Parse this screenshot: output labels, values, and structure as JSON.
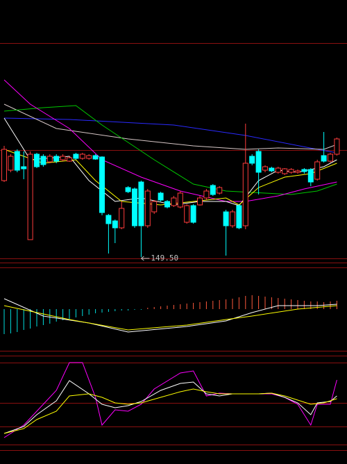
{
  "chart_data": [
    {
      "type": "candlestick",
      "annotations": [
        "149.50"
      ],
      "up_color": "#ff3c3c",
      "down_color": "#00ffff",
      "categories": [
        null,
        null,
        null,
        null,
        null,
        null,
        null,
        null,
        null,
        null,
        null,
        null,
        null,
        null,
        null,
        null,
        null,
        null,
        null,
        null,
        null,
        null,
        null,
        null,
        null,
        null,
        null,
        null,
        null,
        null,
        null,
        null,
        null,
        null,
        null,
        null,
        null,
        null,
        null,
        null,
        null,
        null,
        null,
        null,
        null,
        null,
        null,
        null,
        null,
        null,
        null,
        null
      ],
      "open": [
        155.0,
        155.75,
        157.1,
        156.0,
        150.75,
        156.9,
        156.75,
        156.35,
        156.75,
        156.5,
        156.4,
        156.9,
        156.6,
        156.6,
        156.8,
        156.7,
        152.5,
        152.1,
        151.6,
        154.5,
        154.4,
        154.9,
        151.75,
        152.75,
        154.1,
        153.5,
        153.2,
        153.1,
        152.0,
        153.2,
        153.25,
        153.75,
        154.65,
        154.1,
        152.75,
        151.75,
        153.2,
        151.75,
        156.75,
        157.1,
        155.75,
        155.9,
        155.6,
        155.5,
        155.6,
        155.6,
        155.8,
        155.8,
        155.1,
        156.8,
        156.4,
        156.9
      ],
      "high": [
        157.5,
        156.9,
        157.25,
        157.1,
        157.1,
        157.0,
        156.9,
        156.9,
        156.9,
        156.9,
        156.75,
        157.0,
        157.0,
        156.9,
        156.9,
        156.75,
        152.6,
        152.2,
        153.5,
        154.6,
        154.5,
        155.0,
        154.4,
        153.6,
        154.2,
        153.6,
        153.9,
        154.25,
        153.3,
        153.3,
        153.9,
        154.4,
        154.75,
        154.6,
        152.9,
        152.9,
        153.3,
        159.1,
        156.9,
        157.25,
        156.1,
        156.0,
        156.0,
        155.9,
        155.9,
        155.8,
        155.9,
        155.9,
        156.5,
        158.5,
        157.0,
        158.1
      ],
      "low": [
        154.9,
        155.6,
        155.6,
        155.1,
        150.75,
        155.9,
        156.0,
        156.25,
        156.25,
        156.4,
        156.35,
        156.5,
        156.5,
        156.5,
        156.5,
        152.5,
        149.75,
        150.5,
        151.5,
        154.1,
        151.6,
        149.5,
        151.6,
        152.6,
        153.5,
        153.0,
        153.1,
        153.0,
        151.9,
        151.9,
        153.2,
        153.6,
        153.9,
        154.0,
        149.6,
        151.6,
        151.5,
        151.5,
        156.1,
        154.0,
        155.6,
        155.6,
        155.5,
        155.4,
        155.5,
        155.5,
        155.5,
        154.6,
        155.0,
        156.3,
        156.3,
        156.8
      ],
      "close": [
        157.25,
        156.75,
        155.75,
        155.85,
        156.9,
        156.0,
        156.15,
        156.75,
        156.4,
        156.75,
        156.65,
        156.6,
        156.9,
        156.8,
        156.55,
        152.7,
        151.9,
        151.6,
        153.0,
        154.2,
        151.75,
        151.75,
        154.25,
        153.5,
        153.6,
        153.1,
        153.75,
        154.1,
        153.2,
        152.0,
        153.75,
        154.25,
        154.0,
        154.5,
        151.75,
        152.75,
        151.6,
        156.25,
        156.25,
        155.6,
        156.0,
        155.7,
        155.9,
        155.85,
        155.8,
        155.7,
        155.65,
        154.9,
        156.35,
        156.4,
        156.9,
        158.0
      ],
      "lines": [
        {
          "color": "#2a2aff",
          "x": [
            0,
            10,
            26,
            37,
            48,
            51
          ],
          "values": [
            159.5,
            159.4,
            159.0,
            158.25,
            157.25,
            157.0
          ]
        },
        {
          "color": "#d8c8c8",
          "x": [
            0,
            8,
            19,
            29,
            37,
            42,
            49,
            51
          ],
          "values": [
            160.5,
            158.75,
            158.0,
            157.5,
            157.25,
            157.35,
            157.25,
            157.6
          ]
        },
        {
          "color": "#00c800",
          "x": [
            0,
            6,
            11,
            15,
            23,
            29,
            34,
            40,
            44,
            48,
            51
          ],
          "values": [
            160.0,
            160.25,
            160.4,
            159.0,
            156.5,
            154.75,
            154.25,
            154.1,
            154.0,
            154.25,
            154.75
          ]
        },
        {
          "color": "#ff00ff",
          "x": [
            0,
            4,
            10,
            15,
            21,
            27,
            34,
            37,
            42,
            46,
            51
          ],
          "values": [
            162.25,
            160.5,
            158.75,
            156.5,
            155.25,
            154.25,
            153.5,
            153.5,
            153.9,
            154.4,
            154.9
          ]
        },
        {
          "color": "#ffffff",
          "x": [
            0,
            4,
            10,
            13,
            17,
            21,
            26,
            30,
            34,
            36,
            39,
            42,
            45,
            49,
            51
          ],
          "values": [
            159.5,
            156.5,
            156.75,
            155.0,
            153.5,
            153.75,
            153.25,
            153.5,
            153.5,
            153.2,
            155.0,
            155.75,
            155.6,
            156.0,
            156.5
          ]
        },
        {
          "color": "#ffff00",
          "x": [
            0,
            6,
            11,
            14,
            18,
            24,
            29,
            34,
            36,
            39,
            43,
            47,
            51
          ],
          "values": [
            157.25,
            156.25,
            156.5,
            155.0,
            153.5,
            153.25,
            153.5,
            153.75,
            153.25,
            154.5,
            155.25,
            155.5,
            156.25
          ]
        }
      ],
      "ylim": [
        149.1,
        164.9
      ]
    },
    {
      "type": "macd",
      "up_color": "#ff5a3c",
      "down_color": "#00e0e0",
      "values": [
        -0.72,
        -0.7,
        -0.66,
        -0.6,
        -0.56,
        -0.5,
        -0.46,
        -0.42,
        -0.36,
        -0.32,
        -0.28,
        -0.24,
        -0.2,
        -0.16,
        -0.12,
        -0.1,
        -0.08,
        -0.06,
        -0.04,
        -0.04,
        -0.02,
        -0.02,
        0.04,
        0.06,
        0.08,
        0.1,
        0.12,
        0.14,
        0.16,
        0.18,
        0.2,
        0.22,
        0.24,
        0.26,
        0.28,
        0.3,
        0.34,
        0.38,
        0.4,
        0.38,
        0.36,
        0.34,
        0.32,
        0.3,
        0.28,
        0.26,
        0.24,
        0.22,
        0.22,
        0.2,
        0.22,
        0.24
      ],
      "lines": [
        {
          "color": "#ffffff",
          "x": [
            0,
            6,
            13,
            19,
            28,
            34,
            38,
            42,
            48,
            51
          ],
          "values": [
            0.3,
            -0.2,
            -0.4,
            -0.66,
            -0.5,
            -0.34,
            -0.1,
            0.1,
            0.1,
            0.14
          ]
        },
        {
          "color": "#ffff00",
          "x": [
            0,
            10,
            19,
            28,
            34,
            38,
            45,
            51
          ],
          "values": [
            0.1,
            -0.3,
            -0.6,
            -0.46,
            -0.3,
            -0.2,
            0.0,
            0.1
          ]
        }
      ],
      "ylim": [
        -1.2,
        1.2
      ]
    },
    {
      "type": "line",
      "lines": [
        {
          "color": "#ff00ff",
          "x": [
            0,
            3,
            5,
            8,
            10,
            12,
            14,
            15,
            17,
            19,
            21,
            23,
            27,
            29,
            31,
            33,
            35,
            37,
            39,
            41,
            43,
            45,
            47,
            48,
            50,
            51
          ],
          "values": [
            -8,
            10,
            30,
            60,
            100,
            100,
            50,
            10,
            32,
            30,
            40,
            62,
            85,
            88,
            52,
            56,
            55,
            55,
            55,
            55,
            50,
            40,
            10,
            40,
            40,
            75
          ]
        },
        {
          "color": "#ffffff",
          "x": [
            0,
            3,
            5,
            8,
            10,
            13,
            15,
            17,
            19,
            21,
            24,
            27,
            29,
            31,
            33,
            35,
            37,
            39,
            41,
            43,
            45,
            47,
            48,
            50,
            51
          ],
          "values": [
            -2,
            8,
            25,
            45,
            74,
            55,
            40,
            35,
            38,
            44,
            60,
            70,
            72,
            55,
            52,
            55,
            55,
            55,
            56,
            50,
            42,
            25,
            42,
            44,
            52
          ]
        },
        {
          "color": "#ffff00",
          "x": [
            0,
            3,
            5,
            8,
            10,
            13,
            15,
            17,
            19,
            21,
            24,
            27,
            29,
            31,
            33,
            35,
            37,
            39,
            41,
            43,
            45,
            47,
            49,
            51
          ],
          "values": [
            -2,
            5,
            18,
            30,
            52,
            55,
            50,
            42,
            40,
            42,
            50,
            58,
            62,
            58,
            55,
            55,
            55,
            55,
            56,
            52,
            46,
            40,
            42,
            48
          ]
        }
      ],
      "ylim": [
        -10,
        100
      ]
    }
  ]
}
